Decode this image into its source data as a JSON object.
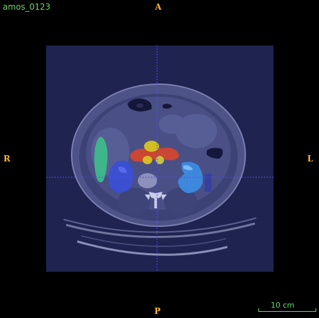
{
  "case_id": "amos_0123",
  "orientation": {
    "anterior": "A",
    "posterior": "P",
    "right": "R",
    "left": "L"
  },
  "scale_bar": {
    "label": "10 cm"
  },
  "colors": {
    "orientation_label": "#ffb43a",
    "case_id": "#6cd66c",
    "scale_bar": "#66dd66",
    "crosshair": "#4a4cff",
    "viewport_tint": "#20244f",
    "seg_spleen": "#3dbf8a",
    "seg_kidney_right": "#3a4fd4",
    "seg_kidney_left": "#3c8be0",
    "seg_pancreas": "#d9452a",
    "seg_aorta_ivc": "#d8c41e"
  },
  "segmentation_labels": [
    "spleen",
    "right kidney",
    "left kidney",
    "pancreas",
    "aorta / IVC"
  ]
}
